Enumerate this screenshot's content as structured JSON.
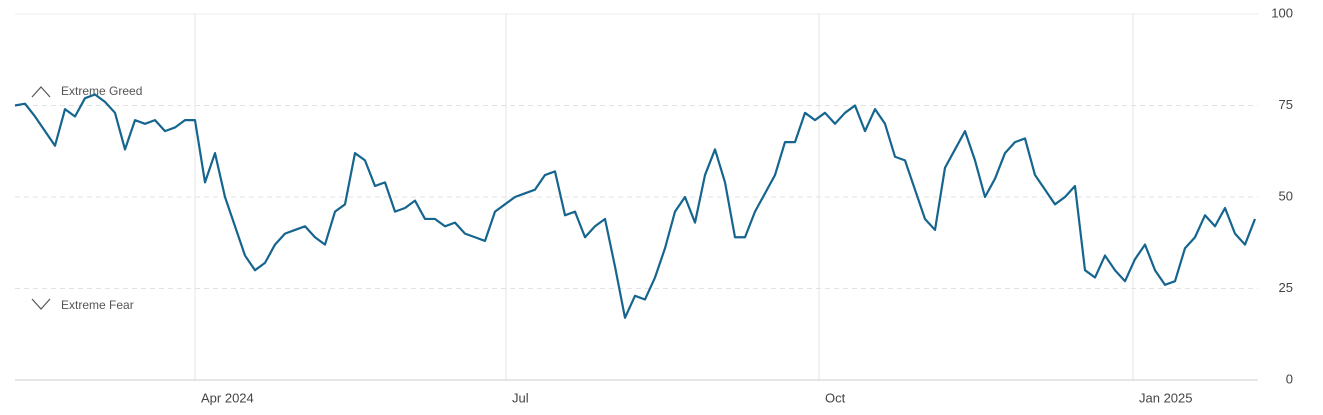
{
  "chart_data": {
    "type": "line",
    "annotations": [
      "Extreme Greed",
      "Extreme Fear"
    ],
    "series": [
      {
        "color": "#15658f",
        "values": [
          75,
          75.5,
          72,
          68,
          64,
          74,
          72,
          77,
          78,
          76,
          73,
          63,
          71,
          70,
          71,
          68,
          69,
          71,
          71,
          54,
          62,
          50,
          42,
          34,
          30,
          32,
          37,
          40,
          41,
          42,
          39,
          37,
          46,
          48,
          62,
          60,
          53,
          54,
          46,
          47,
          49,
          44,
          44,
          42,
          43,
          40,
          39,
          38,
          46,
          48,
          50,
          51,
          52,
          56,
          57,
          45,
          46,
          39,
          42,
          44,
          31,
          17,
          23,
          22,
          28,
          36,
          46,
          50,
          43,
          56,
          63,
          54,
          39,
          39,
          46,
          51,
          56,
          65,
          65,
          73,
          71,
          73,
          70,
          73,
          75,
          68,
          74,
          70,
          61,
          60,
          52,
          44,
          41,
          58,
          63,
          68,
          60,
          50,
          55,
          62,
          65,
          66,
          56,
          52,
          48,
          50,
          53,
          30,
          28,
          34,
          30,
          27,
          33,
          37,
          30,
          26,
          27,
          36,
          39,
          45,
          42,
          47,
          40,
          37,
          44
        ]
      }
    ],
    "xlim": [
      0,
      124
    ],
    "xticks": [
      {
        "value": 18,
        "label": "Apr 2024"
      },
      {
        "value": 49.1,
        "label": "Jul"
      },
      {
        "value": 80.4,
        "label": "Oct"
      },
      {
        "value": 111.8,
        "label": "Jan 2025"
      }
    ],
    "ylim": [
      0,
      100
    ],
    "yticks": [
      0,
      25,
      50,
      75,
      100
    ],
    "grid": true
  }
}
